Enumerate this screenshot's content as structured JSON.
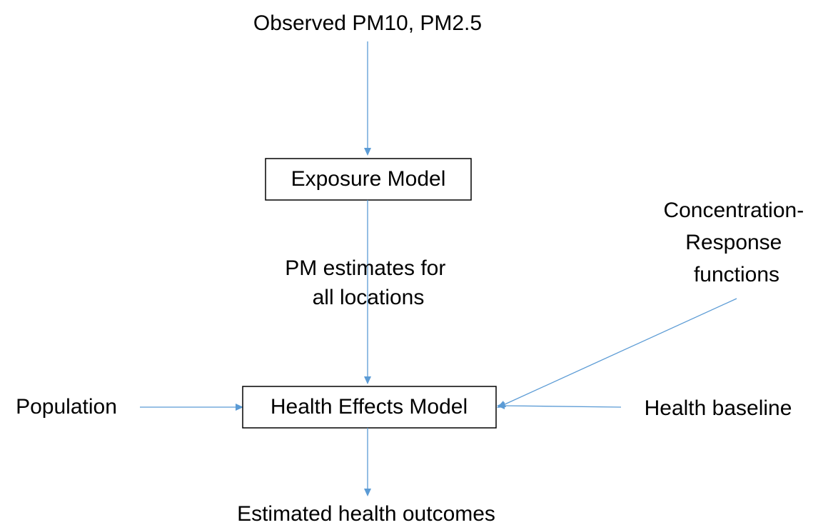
{
  "nodes": [
    {
      "label": "Observed PM10, PM2.5"
    },
    {
      "label": "Exposure Model"
    },
    {
      "label": "PM estimates for all locations"
    },
    {
      "label": "Concentration-Response functions"
    },
    {
      "label": "Population"
    },
    {
      "label": "Health Effects Model"
    },
    {
      "label": "Health baseline"
    },
    {
      "label": "Estimated health outcomes"
    }
  ]
}
